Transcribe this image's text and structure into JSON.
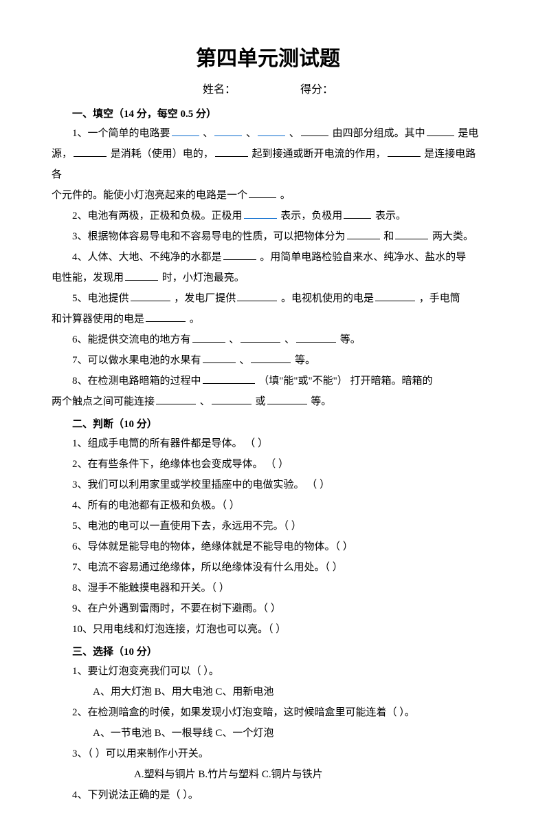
{
  "title": "第四单元测试题",
  "header": {
    "name_label": "姓名：",
    "score_label": "得分："
  },
  "sections": {
    "fill": {
      "header": "一、填空（14 分，每空 0.5 分）"
    },
    "judge": {
      "header": "二、判断（10 分）"
    },
    "choice": {
      "header": "三、选择（10 分）"
    }
  },
  "fill": {
    "q1a": "1、一个简单的电路要",
    "q1b": "由四部分组成。其中",
    "q1c": "是电",
    "q1d": "源，",
    "q1e": "是消耗（使用）电的，",
    "q1f": "起到接通或断开电流的作用，",
    "q1g": "是连接电路各",
    "q1h": "个元件的。能使小灯泡亮起来的电路是一个",
    "q1i": "。",
    "q2a": "2、电池有两极，正极和负极。正极用",
    "q2b": "表示，负极用",
    "q2c": "表示。",
    "q3a": "3、根据物体容易导电和不容易导电的性质，可以把物体分为",
    "q3b": "和",
    "q3c": "两大类。",
    "q4a": "4、人体、大地、不纯净的水都是",
    "q4b": "。用简单电路检验自来水、纯净水、盐水的导",
    "q4c": "电性能，发现用",
    "q4d": "时，小灯泡最亮。",
    "q5a": "5、电池提供",
    "q5b": "，发电厂提供",
    "q5c": "。电视机使用的电是",
    "q5d": "，手电筒",
    "q5e": "和计算器使用的电是",
    "q5f": "。",
    "q6a": "6、能提供交流电的地方有",
    "q6b": "等。",
    "q7a": "7、可以做水果电池的水果有",
    "q7b": "等。",
    "q8a": "8、在检测电路暗箱的过程中",
    "q8b": "（填\"能\"或\"不能\"） 打开暗箱。暗箱的",
    "q8c": "两个触点之间可能连接",
    "q8d": "或",
    "q8e": "等。",
    "sep1": "、",
    "sep2": "、",
    "sep3": "、",
    "sep6a": "、",
    "sep6b": "、",
    "sep7a": "、"
  },
  "judge": {
    "q1": "1、组成手电筒的所有器件都是导体。 （    ）",
    "q2": "2、在有些条件下，绝缘体也会变成导体。 （    ）",
    "q3": "3、我们可以利用家里或学校里插座中的电做实验。    （    ）",
    "q4": "4、所有的电池都有正极和负极。（    ）",
    "q5": "5、电池的电可以一直使用下去，永远用不完。（    ）",
    "q6": "6、导体就是能导电的物体，绝缘体就是不能导电的物体。（    ）",
    "q7": "7、电流不容易通过绝缘体，所以绝缘体没有什么用处。（    ）",
    "q8": "8、湿手不能触摸电器和开关。（    ）",
    "q9": "9、在户外遇到雷雨时，不要在树下避雨。（    ）",
    "q10": "10、只用电线和灯泡连接，灯泡也可以亮。（    ）"
  },
  "choice": {
    "q1": "1、要让灯泡变亮我们可以（     ）。",
    "q1opts": "A、用大灯泡    B、用大电池    C、用新电池",
    "q2": "2、在检测暗盒的时候，如果发现小灯泡变暗，这时候暗盒里可能连着（    ）。",
    "q2opts": "A、一节电池   B、一根导线   C、一个灯泡",
    "q3": "3、（    ）可以用来制作小开关。",
    "q3opts": "A.塑料与铜片 B.竹片与塑料 C.铜片与铁片",
    "q4": "4、下列说法正确的是（     ）。"
  }
}
